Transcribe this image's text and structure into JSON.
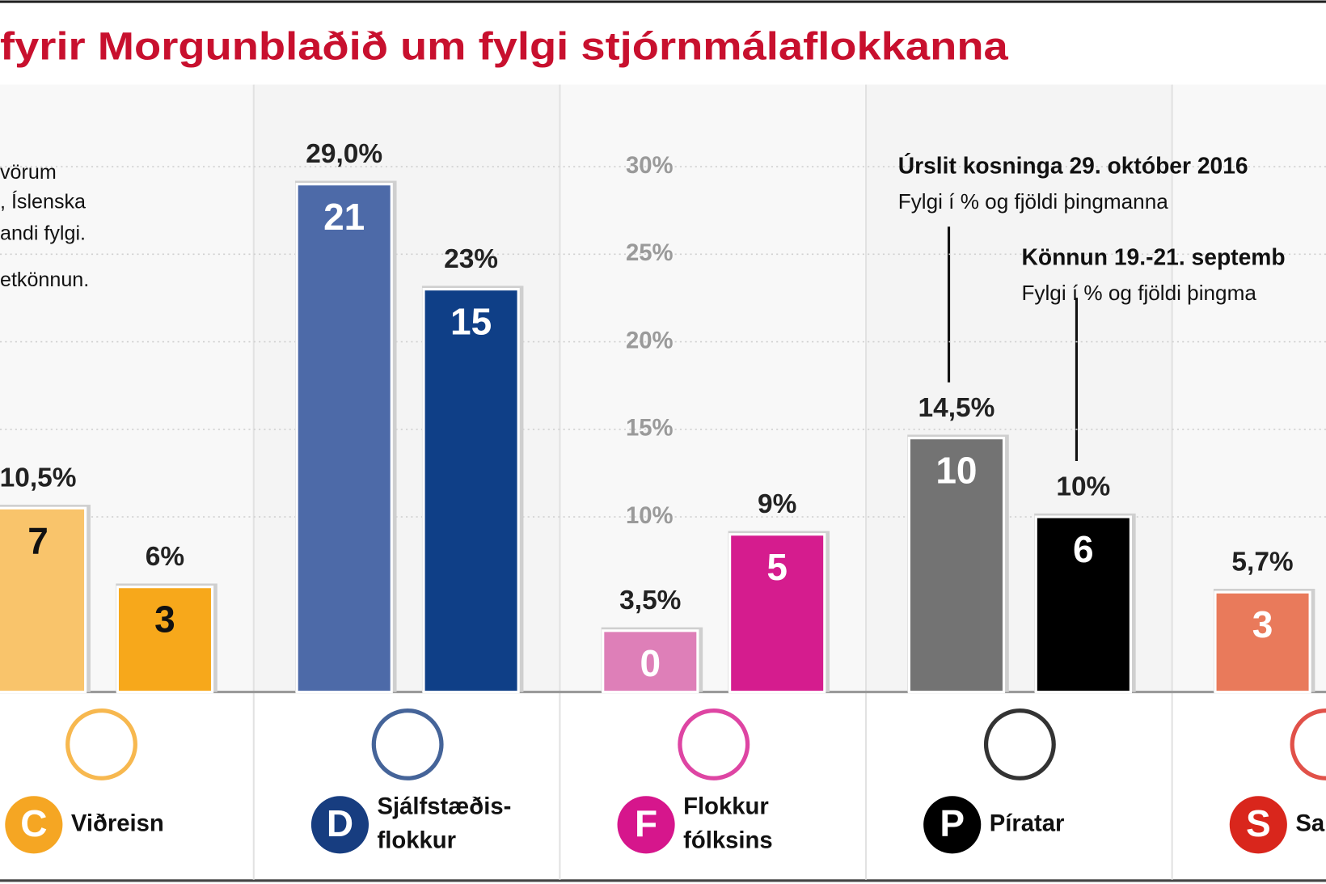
{
  "chart_data": {
    "type": "bar",
    "title": "fyrir Morgunblaðið um fylgi stjórnmálaflokkanna",
    "notes": [
      "vörum",
      ", Íslenska",
      "andi fylgi.",
      "etkönnun."
    ],
    "categories": [
      [
        "Viðreisn"
      ],
      [
        "Sjálfstæðis-",
        "flokkur"
      ],
      [
        "Flokkur",
        "fólksins"
      ],
      [
        "Píratar"
      ],
      [
        "Sam"
      ]
    ],
    "party_letters": [
      "C",
      "D",
      "F",
      "P",
      "S"
    ],
    "party_colors": [
      "#f5a623",
      "#173d80",
      "#d6168c",
      "#000000",
      "#d9261c"
    ],
    "series": [
      {
        "name": "Úrslit kosninga 29. október 2016",
        "note": "Fylgi í % og fjöldi þingmanna",
        "colors": [
          "#f9c46b",
          "#4d6aa8",
          "#de7fb8",
          "#737373",
          "#e97a5b"
        ],
        "values": [
          10.5,
          29.0,
          3.5,
          14.5,
          5.7
        ],
        "value_labels": [
          "10,5%",
          "29,0%",
          "3,5%",
          "14,5%",
          "5,7%"
        ],
        "seats": [
          7,
          21,
          0,
          10,
          3
        ]
      },
      {
        "name": "Könnun 19.-21. septemb",
        "note": "Fylgi í % og fjöldi þingma",
        "colors": [
          "#f7a81b",
          "#0f3f87",
          "#d51c8e",
          "#000000",
          null
        ],
        "values": [
          6,
          23,
          9,
          10,
          null
        ],
        "value_labels": [
          "6%",
          "23%",
          "9%",
          "10%",
          null
        ],
        "seats": [
          3,
          15,
          5,
          6,
          null
        ]
      }
    ],
    "ylim": [
      0,
      35
    ],
    "yticks": [
      {
        "value": 10,
        "label": "10%"
      },
      {
        "value": 15,
        "label": "15%"
      },
      {
        "value": 20,
        "label": "20%"
      },
      {
        "value": 25,
        "label": "25%"
      },
      {
        "value": 30,
        "label": "30%"
      }
    ],
    "grid": true
  }
}
